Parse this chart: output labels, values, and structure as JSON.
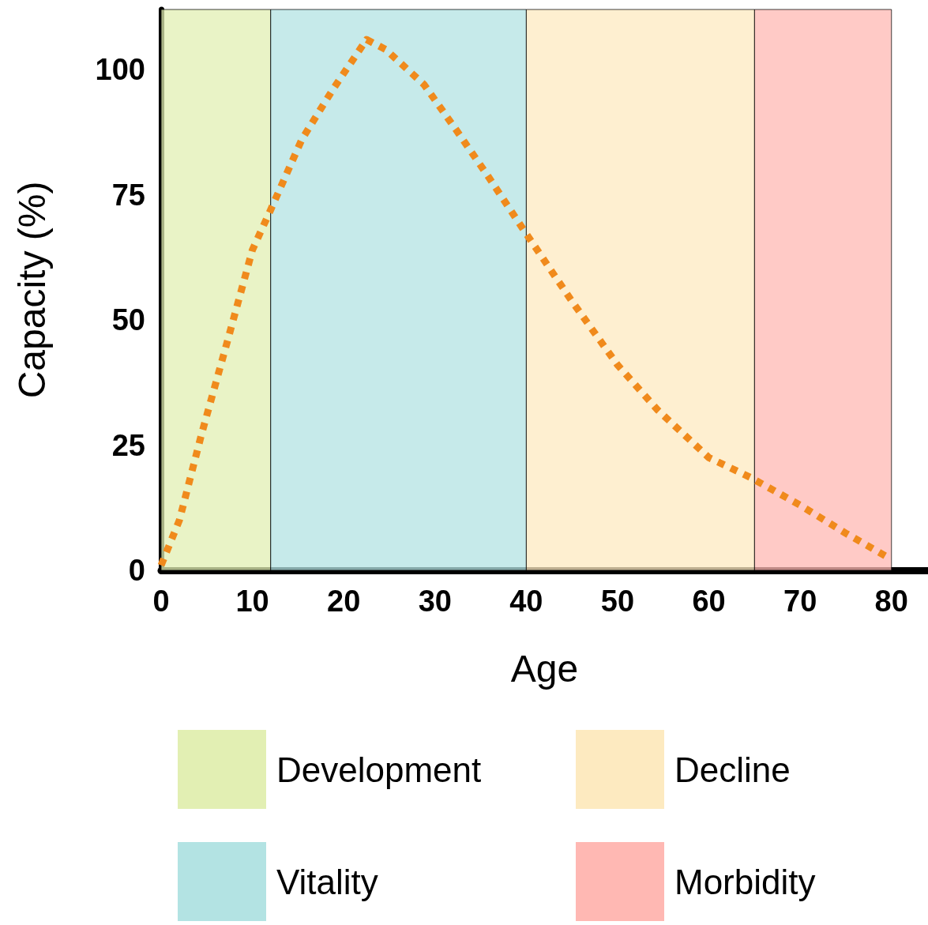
{
  "chart_data": {
    "type": "line",
    "xlabel": "Age",
    "ylabel": "Capacity (%)",
    "xlim": [
      0,
      84
    ],
    "xticks": [
      0,
      10,
      20,
      30,
      40,
      50,
      60,
      70,
      80
    ],
    "ylim": [
      0,
      112
    ],
    "yticks": [
      0,
      25,
      50,
      75,
      100
    ],
    "grid": false,
    "legend": "bottom",
    "marker": "none",
    "line_style": "dotted",
    "series": [
      {
        "color": "#f08a1c",
        "x": [
          0,
          2,
          4.4,
          7.3,
          10,
          12,
          15.4,
          18.8,
          22.5,
          24.6,
          28.8,
          32.3,
          35.7,
          39.7,
          44.9,
          50,
          54.4,
          60,
          64.6,
          70,
          75,
          79.5
        ],
        "values": [
          1,
          10,
          27,
          46,
          64,
          72,
          86,
          96,
          106,
          104,
          97,
          88,
          79,
          68,
          54,
          41,
          32,
          22.5,
          18.5,
          13,
          7.4,
          2.7
        ]
      }
    ],
    "bands": [
      {
        "axis": "x",
        "from": 0,
        "to": 12,
        "label": "Development",
        "color": "#e2efb3"
      },
      {
        "axis": "x",
        "from": 12,
        "to": 40,
        "label": "Vitality",
        "color": "#b3e3e3"
      },
      {
        "axis": "x",
        "from": 40,
        "to": 65,
        "label": "Decline",
        "color": "#fdeac0"
      },
      {
        "axis": "x",
        "from": 65,
        "to": 80,
        "label": "Morbidity",
        "color": "#ffb8b3"
      }
    ]
  }
}
